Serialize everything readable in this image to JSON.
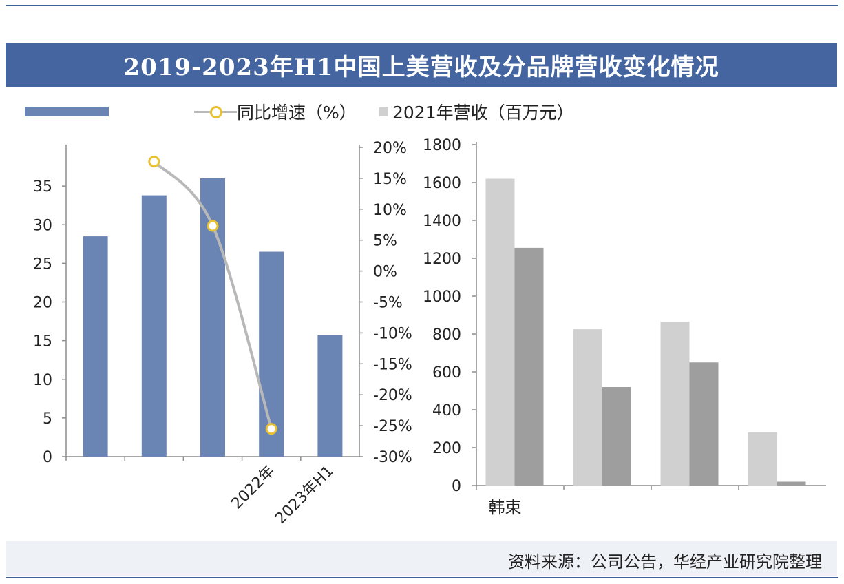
{
  "title": "2019-2023年H1中国上美营收及分品牌营收变化情况",
  "legend": {
    "line_label": "同比增速（%）",
    "gray_label": "2021年营收（百万元）"
  },
  "source": "资料来源：公司公告，华经产业研究院整理",
  "colors": {
    "title_bg": "#44659f",
    "bar_blue": "#6a84b3",
    "line": "#b8b8b8",
    "marker": "#e8c233",
    "bar_light": "#d0d0d0",
    "bar_dark": "#9e9e9e"
  },
  "chart_data": [
    {
      "type": "bar",
      "categories": [
        "",
        "",
        "",
        "2022年",
        "2023年H1"
      ],
      "series": [
        {
          "type": "bar",
          "axis": "left",
          "values": [
            28.5,
            33.8,
            36.0,
            26.5,
            15.7
          ]
        },
        {
          "name": "同比增速（%）",
          "type": "line",
          "axis": "right",
          "values": [
            null,
            17.7,
            7.3,
            -25.5,
            null
          ]
        }
      ],
      "y_left": {
        "ticks": [
          "0",
          "5",
          "10",
          "15",
          "20",
          "25",
          "30",
          "35"
        ],
        "ylim": [
          0,
          40
        ]
      },
      "y_right": {
        "ticks": [
          "20%",
          "15%",
          "10%",
          "5%",
          "0%",
          "-5%",
          "-10%",
          "-15%",
          "-20%",
          "-25%",
          "-30%"
        ],
        "ylim": [
          -30,
          20
        ]
      },
      "grid": false
    },
    {
      "type": "bar",
      "categories": [
        "韩束",
        "",
        "",
        ""
      ],
      "series": [
        {
          "name": "2021年营收（百万元）",
          "values": [
            1620,
            825,
            865,
            280
          ]
        },
        {
          "values": [
            1255,
            520,
            650,
            20
          ]
        }
      ],
      "y_ticks": [
        "0",
        "200",
        "400",
        "600",
        "800",
        "1000",
        "1200",
        "1400",
        "1600",
        "1800"
      ],
      "ylim": [
        0,
        1800
      ],
      "grid": false
    }
  ]
}
